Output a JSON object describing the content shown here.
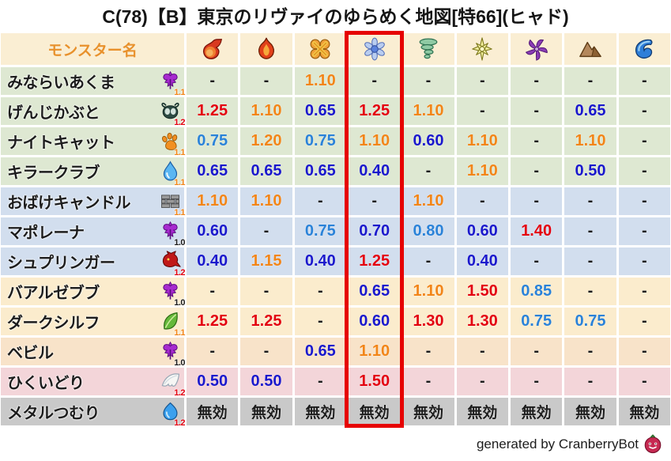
{
  "header": {
    "monster_col_label": "モンスター名",
    "header_bg": "#faeed3",
    "header_label_color": "#e8912c"
  },
  "chart_data": {
    "type": "table",
    "title": "C(78)【B】東京のリヴァイのゆらめく地図[特66](ヒャド)",
    "columns": [
      "モンスター名",
      "fireball-icon",
      "flame-icon",
      "explosion-icon",
      "ice-icon",
      "wind-icon",
      "lightning-icon",
      "dark-icon",
      "earth-icon",
      "water-icon"
    ],
    "highlighted_column": "ice-icon",
    "highlighted_column_index": 4,
    "rows": [
      {
        "name": "みならいあくま",
        "family_icon": "demon",
        "multiplier": "1.1",
        "group": "green",
        "values": [
          "-",
          "-",
          "1.10",
          "-",
          "-",
          "-",
          "-",
          "-",
          "-"
        ]
      },
      {
        "name": "げんじかぶと",
        "family_icon": "bug",
        "multiplier": "1.2",
        "group": "green",
        "values": [
          "1.25",
          "1.10",
          "0.65",
          "1.25",
          "1.10",
          "-",
          "-",
          "0.65",
          "-"
        ]
      },
      {
        "name": "ナイトキャット",
        "family_icon": "paw",
        "multiplier": "1.1",
        "group": "green",
        "values": [
          "0.75",
          "1.20",
          "0.75",
          "1.10",
          "0.60",
          "1.10",
          "-",
          "1.10",
          "-"
        ]
      },
      {
        "name": "キラークラブ",
        "family_icon": "droplet",
        "multiplier": "1.1",
        "group": "green",
        "values": [
          "0.65",
          "0.65",
          "0.65",
          "0.40",
          "-",
          "1.10",
          "-",
          "0.50",
          "-"
        ]
      },
      {
        "name": "おばけキャンドル",
        "family_icon": "wall",
        "multiplier": "1.1",
        "group": "blue",
        "values": [
          "1.10",
          "1.10",
          "-",
          "-",
          "1.10",
          "-",
          "-",
          "-",
          "-"
        ]
      },
      {
        "name": "マポレーナ",
        "family_icon": "demon",
        "multiplier": "1.0",
        "group": "blue",
        "values": [
          "0.60",
          "-",
          "0.75",
          "0.70",
          "0.80",
          "0.60",
          "1.40",
          "-",
          "-"
        ]
      },
      {
        "name": "シュプリンガー",
        "family_icon": "dragon",
        "multiplier": "1.2",
        "group": "blue",
        "values": [
          "0.40",
          "1.15",
          "0.40",
          "1.25",
          "-",
          "0.40",
          "-",
          "-",
          "-"
        ]
      },
      {
        "name": "バアルゼブブ",
        "family_icon": "demon",
        "multiplier": "1.0",
        "group": "cream",
        "values": [
          "-",
          "-",
          "-",
          "0.65",
          "1.10",
          "1.50",
          "0.85",
          "-",
          "-"
        ]
      },
      {
        "name": "ダークシルフ",
        "family_icon": "leaf",
        "multiplier": "1.1",
        "group": "cream",
        "values": [
          "1.25",
          "1.25",
          "-",
          "0.60",
          "1.30",
          "1.30",
          "0.75",
          "0.75",
          "-"
        ]
      },
      {
        "name": "ベビル",
        "family_icon": "demon",
        "multiplier": "1.0",
        "group": "peach",
        "values": [
          "-",
          "-",
          "0.65",
          "1.10",
          "-",
          "-",
          "-",
          "-",
          "-"
        ]
      },
      {
        "name": "ひくいどり",
        "family_icon": "wing",
        "multiplier": "1.2",
        "group": "pink",
        "values": [
          "0.50",
          "0.50",
          "-",
          "1.50",
          "-",
          "-",
          "-",
          "-",
          "-"
        ]
      },
      {
        "name": "メタルつむり",
        "family_icon": "slime",
        "multiplier": "1.2",
        "group": "gray",
        "values": [
          "無効",
          "無効",
          "無効",
          "無効",
          "無効",
          "無効",
          "無効",
          "無効",
          "無効"
        ]
      }
    ]
  },
  "palette": {
    "value_red": "#e3000f",
    "value_orange": "#f28518",
    "value_light_blue": "#2a82d8",
    "value_dark_blue": "#1a18cc",
    "text_black": "#1c1c1c",
    "highlight_box": "#e60000"
  },
  "row_group_colors": {
    "green": "#dee8d2",
    "blue": "#d2deee",
    "cream": "#fbeccd",
    "peach": "#f8e3c9",
    "pink": "#f3d5d9",
    "gray": "#c9c9c9"
  },
  "footer": {
    "credit": "generated by CranberryBot",
    "bot_icon": "cranberry-slime-icon"
  }
}
